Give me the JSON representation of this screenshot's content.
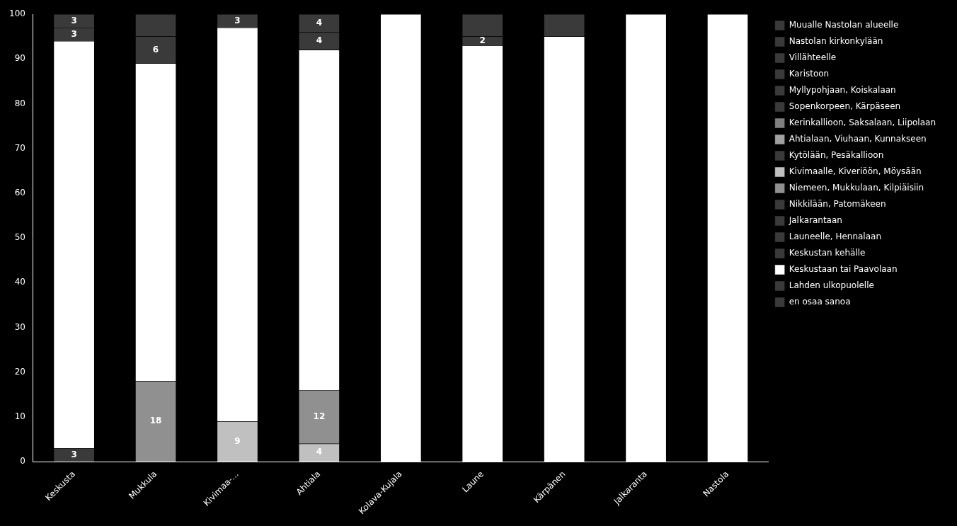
{
  "chart_data": {
    "type": "bar",
    "stacked": true,
    "categories": [
      "Keskusta",
      "Mukkula",
      "Kivimaa-...",
      "Ahtiala",
      "Kolava-Kujala",
      "Laune",
      "Kärpänen",
      "Jalkaranta",
      "Nastola"
    ],
    "series": [
      {
        "name": "Muualle Nastolan alueelle",
        "color": "#3a3a3a",
        "values": [
          0,
          0,
          0,
          0,
          0,
          0,
          0,
          0,
          0
        ]
      },
      {
        "name": "Nastolan kirkonkylään",
        "color": "#3a3a3a",
        "values": [
          0,
          0,
          0,
          0,
          0,
          0,
          0,
          0,
          0
        ]
      },
      {
        "name": "Villähteelle",
        "color": "#3a3a3a",
        "values": [
          0,
          0,
          0,
          0,
          0,
          0,
          0,
          0,
          0
        ]
      },
      {
        "name": "Karistoon",
        "color": "#3a3a3a",
        "values": [
          0,
          0,
          0,
          0,
          0,
          0,
          0,
          0,
          0
        ]
      },
      {
        "name": "Myllypohjaan, Koiskalaan",
        "color": "#3a3a3a",
        "values": [
          0,
          0,
          0,
          0,
          0,
          0,
          0,
          0,
          0
        ]
      },
      {
        "name": "Sopenkorpeen, Kärpäseen",
        "color": "#3a3a3a",
        "values": [
          0,
          0,
          0,
          0,
          0,
          0,
          0,
          0,
          0
        ]
      },
      {
        "name": "Kerinkallioon, Saksalaan, Liipolaan",
        "color": "#808080",
        "values": [
          0,
          0,
          0,
          0,
          0,
          0,
          0,
          0,
          0
        ]
      },
      {
        "name": "Ahtialaan, Viuhaan, Kunnakseen",
        "color": "#a0a0a0",
        "values": [
          0,
          0,
          0,
          0,
          0,
          0,
          0,
          0,
          0
        ]
      },
      {
        "name": "Kytölään, Pesäkallioon",
        "color": "#3a3a3a",
        "values": [
          0,
          0,
          0,
          0,
          0,
          0,
          0,
          0,
          0
        ]
      },
      {
        "name": "Kivimaalle, Kiveriöön, Möysään",
        "color": "#c0c0c0",
        "values": [
          0,
          0,
          9,
          4,
          0,
          0,
          0,
          0,
          0
        ],
        "value_labels": [
          null,
          null,
          "9",
          "4",
          null,
          null,
          null,
          null,
          null
        ]
      },
      {
        "name": "Niemeen, Mukkulaan, Kilpiäisiin",
        "color": "#909090",
        "values": [
          0,
          18,
          0,
          12,
          0,
          0,
          0,
          0,
          0
        ],
        "value_labels": [
          null,
          "18",
          null,
          "12",
          null,
          null,
          null,
          null,
          null
        ]
      },
      {
        "name": "Nikkilään, Patomäkeen",
        "color": "#3a3a3a",
        "values": [
          0,
          0,
          0,
          0,
          0,
          0,
          0,
          0,
          0
        ]
      },
      {
        "name": "Jalkarantaan",
        "color": "#3a3a3a",
        "values": [
          0,
          0,
          0,
          0,
          0,
          0,
          0,
          0,
          0
        ]
      },
      {
        "name": "Launeelle, Hennalaan",
        "color": "#3a3a3a",
        "values": [
          0,
          0,
          0,
          0,
          0,
          0,
          0,
          0,
          0
        ]
      },
      {
        "name": "Keskustan kehälle",
        "color": "#3a3a3a",
        "values": [
          3,
          0,
          0,
          0,
          0,
          0,
          0,
          0,
          0
        ],
        "value_labels": [
          "3",
          null,
          null,
          null,
          null,
          null,
          null,
          null,
          null
        ]
      },
      {
        "name": "Keskustaan tai Paavolaan",
        "color": "#ffffff",
        "values": [
          91,
          71,
          88,
          76,
          100,
          93,
          95,
          100,
          100
        ]
      },
      {
        "name": "Lahden ulkopuolelle",
        "color": "#3a3a3a",
        "values": [
          3,
          6,
          3,
          4,
          0,
          2,
          0,
          0,
          0
        ],
        "value_labels": [
          "3",
          "6",
          "3",
          "4",
          null,
          "2",
          null,
          null,
          null
        ]
      },
      {
        "name": "en osaa sanoa",
        "color": "#3a3a3a",
        "values": [
          3,
          5,
          0,
          4,
          0,
          5,
          5,
          0,
          0
        ],
        "value_labels": [
          "3",
          null,
          null,
          "4",
          null,
          null,
          null,
          null,
          null
        ]
      }
    ],
    "ylim": [
      0,
      100
    ],
    "yticks": [
      0,
      10,
      20,
      30,
      40,
      50,
      60,
      70,
      80,
      90,
      100
    ],
    "grid": false,
    "legend": "right",
    "data_labels": true
  }
}
